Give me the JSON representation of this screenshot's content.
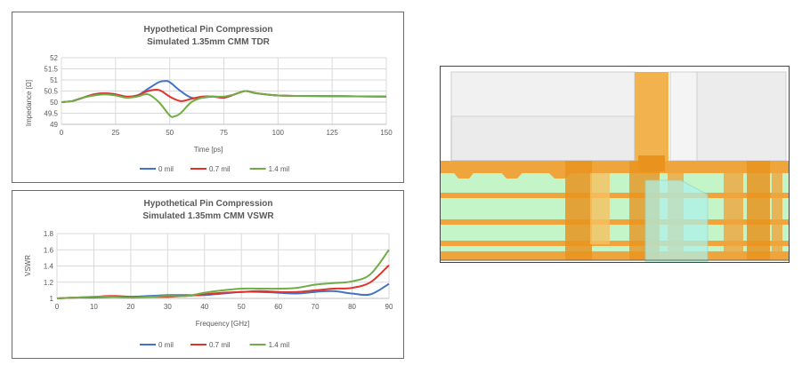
{
  "chart_data": [
    {
      "type": "line",
      "title": "Hypothetical Pin Compression",
      "subtitle": "Simulated 1.35mm CMM TDR",
      "xlabel": "Time [ps]",
      "ylabel": "Impedance [Ω]",
      "xlim": [
        0,
        150
      ],
      "ylim": [
        49,
        52
      ],
      "xticks": [
        "0",
        "25",
        "50",
        "75",
        "100",
        "125",
        "150"
      ],
      "yticks": [
        "49",
        "49.5",
        "50",
        "50.5",
        "51",
        "51.5",
        "52"
      ],
      "grid": true,
      "legend": "bottom",
      "series": [
        {
          "name": "0 mil",
          "color": "#4472c4",
          "x": [
            0,
            5,
            10,
            15,
            20,
            25,
            30,
            35,
            40,
            45,
            48,
            50,
            55,
            60,
            65,
            70,
            75,
            80,
            85,
            90,
            100,
            110,
            125,
            150
          ],
          "y": [
            50.0,
            50.05,
            50.2,
            50.35,
            50.4,
            50.35,
            50.25,
            50.3,
            50.6,
            50.9,
            50.95,
            50.9,
            50.5,
            50.2,
            50.2,
            50.25,
            50.2,
            50.35,
            50.5,
            50.4,
            50.3,
            50.28,
            50.27,
            50.25
          ]
        },
        {
          "name": "0.7 mil",
          "color": "#e0342b",
          "x": [
            0,
            5,
            10,
            15,
            20,
            25,
            30,
            35,
            40,
            45,
            50,
            55,
            60,
            65,
            70,
            75,
            80,
            85,
            90,
            100,
            110,
            125,
            150
          ],
          "y": [
            50.0,
            50.05,
            50.2,
            50.35,
            50.4,
            50.35,
            50.25,
            50.3,
            50.5,
            50.55,
            50.25,
            50.05,
            50.15,
            50.25,
            50.25,
            50.2,
            50.35,
            50.5,
            50.4,
            50.3,
            50.28,
            50.27,
            50.25
          ]
        },
        {
          "name": "1.4 mil",
          "color": "#70ad47",
          "x": [
            0,
            5,
            10,
            15,
            20,
            25,
            30,
            35,
            40,
            45,
            50,
            52,
            55,
            60,
            65,
            70,
            75,
            80,
            85,
            90,
            100,
            110,
            125,
            150
          ],
          "y": [
            50.0,
            50.05,
            50.2,
            50.3,
            50.35,
            50.3,
            50.2,
            50.25,
            50.35,
            50.0,
            49.4,
            49.35,
            49.5,
            50.0,
            50.2,
            50.25,
            50.25,
            50.35,
            50.5,
            50.4,
            50.3,
            50.28,
            50.27,
            50.25
          ]
        }
      ]
    },
    {
      "type": "line",
      "title": "Hypothetical Pin Compression",
      "subtitle": "Simulated 1.35mm CMM VSWR",
      "xlabel": "Frequency [GHz]",
      "ylabel": "VSWR",
      "xlim": [
        0,
        90
      ],
      "ylim": [
        1,
        1.8
      ],
      "xticks": [
        "0",
        "10",
        "20",
        "30",
        "40",
        "50",
        "60",
        "70",
        "80",
        "90"
      ],
      "yticks": [
        "1",
        "1.2",
        "1.4",
        "1.6",
        "1.8"
      ],
      "grid": true,
      "legend": "bottom",
      "series": [
        {
          "name": "0 mil",
          "color": "#4472c4",
          "x": [
            0,
            5,
            10,
            15,
            20,
            25,
            30,
            35,
            40,
            45,
            50,
            55,
            60,
            65,
            70,
            75,
            80,
            85,
            90
          ],
          "y": [
            1.0,
            1.01,
            1.01,
            1.02,
            1.02,
            1.03,
            1.04,
            1.04,
            1.04,
            1.06,
            1.08,
            1.08,
            1.07,
            1.06,
            1.08,
            1.09,
            1.06,
            1.05,
            1.18
          ]
        },
        {
          "name": "0.7 mil",
          "color": "#e0342b",
          "x": [
            0,
            5,
            10,
            15,
            20,
            25,
            30,
            35,
            40,
            45,
            50,
            55,
            60,
            65,
            70,
            75,
            80,
            85,
            90
          ],
          "y": [
            1.0,
            1.01,
            1.02,
            1.03,
            1.02,
            1.02,
            1.02,
            1.03,
            1.05,
            1.07,
            1.08,
            1.09,
            1.08,
            1.08,
            1.1,
            1.12,
            1.13,
            1.2,
            1.41
          ]
        },
        {
          "name": "1.4 mil",
          "color": "#70ad47",
          "x": [
            0,
            5,
            10,
            15,
            20,
            25,
            30,
            35,
            40,
            45,
            50,
            55,
            60,
            65,
            70,
            75,
            80,
            85,
            90
          ],
          "y": [
            1.0,
            1.01,
            1.02,
            1.02,
            1.01,
            1.02,
            1.03,
            1.03,
            1.07,
            1.1,
            1.12,
            1.12,
            1.12,
            1.13,
            1.17,
            1.19,
            1.21,
            1.3,
            1.6
          ]
        }
      ]
    }
  ],
  "colors": {
    "frame": "#6b6b6b",
    "grid": "#d9d9d9",
    "text": "#595959"
  }
}
